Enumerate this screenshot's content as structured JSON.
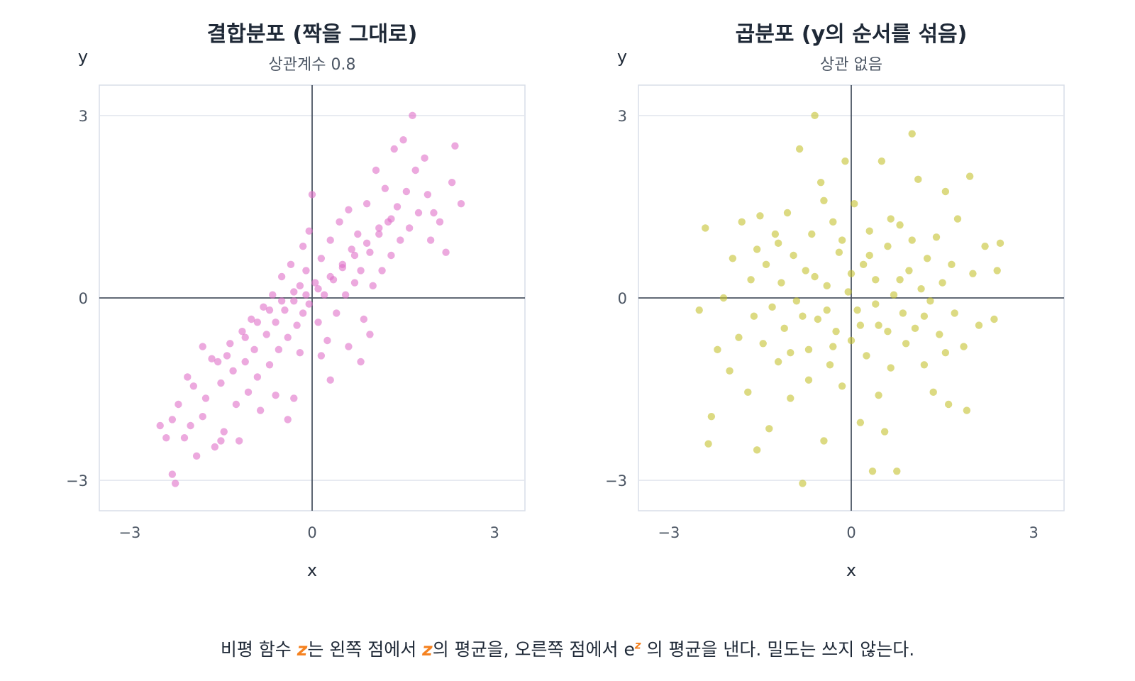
{
  "colors": {
    "left_points": "#e06fc8",
    "right_points": "#c4c22e",
    "axis_line": "#4b5563",
    "grid": "#e2e6ee",
    "frame": "#d9dee8",
    "accent": "#f58220"
  },
  "chart_data": [
    {
      "type": "scatter",
      "title": "결합분포 (짝을 그대로)",
      "subtitle": "상관계수 0.8",
      "xlabel": "x",
      "ylabel": "y",
      "xlim": [
        -3.5,
        3.5
      ],
      "ylim": [
        -3.5,
        3.5
      ],
      "xticks": [
        -3,
        0,
        3
      ],
      "yticks": [
        -3,
        0,
        3
      ],
      "xtick_labels": [
        "−3",
        "0",
        "3"
      ],
      "ytick_labels": [
        "−3",
        "0",
        "3"
      ],
      "grid": true,
      "reference_lines": {
        "x": 0,
        "y": 0
      },
      "points": [
        [
          -2.5,
          -2.1
        ],
        [
          -2.4,
          -2.3
        ],
        [
          -2.3,
          -2.9
        ],
        [
          -2.25,
          -3.05
        ],
        [
          -2.3,
          -2.0
        ],
        [
          -2.1,
          -2.3
        ],
        [
          -2.2,
          -1.75
        ],
        [
          -2.0,
          -2.1
        ],
        [
          -1.95,
          -1.45
        ],
        [
          -1.9,
          -2.6
        ],
        [
          -1.8,
          -1.95
        ],
        [
          -1.75,
          -1.65
        ],
        [
          -1.6,
          -2.45
        ],
        [
          -1.55,
          -1.05
        ],
        [
          -1.5,
          -1.4
        ],
        [
          -1.45,
          -2.2
        ],
        [
          -1.35,
          -0.75
        ],
        [
          -1.3,
          -1.2
        ],
        [
          -1.25,
          -1.75
        ],
        [
          -1.2,
          -2.35
        ],
        [
          -1.15,
          -0.55
        ],
        [
          -1.1,
          -1.05
        ],
        [
          -1.05,
          -1.55
        ],
        [
          -1.0,
          -0.35
        ],
        [
          -0.95,
          -0.85
        ],
        [
          -0.9,
          -1.3
        ],
        [
          -0.85,
          -1.85
        ],
        [
          -0.8,
          -0.15
        ],
        [
          -0.75,
          -0.6
        ],
        [
          -0.7,
          -1.1
        ],
        [
          -0.65,
          0.05
        ],
        [
          -0.6,
          -0.4
        ],
        [
          -0.55,
          -0.85
        ],
        [
          -0.5,
          0.35
        ],
        [
          -0.45,
          -0.2
        ],
        [
          -0.4,
          -0.65
        ],
        [
          -0.35,
          0.55
        ],
        [
          -0.3,
          -0.05
        ],
        [
          -0.25,
          -0.45
        ],
        [
          -0.2,
          0.2
        ],
        [
          -0.15,
          -0.25
        ],
        [
          -0.1,
          0.45
        ],
        [
          -0.05,
          -0.1
        ],
        [
          0.0,
          1.7
        ],
        [
          0.05,
          0.25
        ],
        [
          0.1,
          -0.4
        ],
        [
          0.15,
          0.65
        ],
        [
          0.2,
          0.05
        ],
        [
          0.25,
          -0.7
        ],
        [
          0.3,
          0.95
        ],
        [
          0.35,
          0.3
        ],
        [
          0.4,
          -0.25
        ],
        [
          0.45,
          1.25
        ],
        [
          0.5,
          0.5
        ],
        [
          0.55,
          0.05
        ],
        [
          0.6,
          1.45
        ],
        [
          0.65,
          0.8
        ],
        [
          0.7,
          0.25
        ],
        [
          0.75,
          1.05
        ],
        [
          0.8,
          0.45
        ],
        [
          0.85,
          -0.35
        ],
        [
          0.9,
          1.55
        ],
        [
          0.95,
          0.75
        ],
        [
          1.0,
          0.2
        ],
        [
          1.05,
          2.1
        ],
        [
          1.1,
          1.05
        ],
        [
          1.15,
          0.45
        ],
        [
          1.2,
          1.8
        ],
        [
          1.25,
          1.25
        ],
        [
          1.3,
          0.7
        ],
        [
          1.35,
          2.45
        ],
        [
          1.4,
          1.5
        ],
        [
          1.45,
          0.95
        ],
        [
          1.5,
          2.6
        ],
        [
          1.55,
          1.75
        ],
        [
          1.6,
          1.15
        ],
        [
          1.65,
          3.0
        ],
        [
          1.7,
          2.1
        ],
        [
          1.75,
          1.4
        ],
        [
          1.85,
          2.3
        ],
        [
          1.9,
          1.7
        ],
        [
          1.95,
          0.95
        ],
        [
          2.0,
          1.4
        ],
        [
          2.1,
          1.25
        ],
        [
          2.2,
          0.75
        ],
        [
          2.3,
          1.9
        ],
        [
          2.35,
          2.5
        ],
        [
          2.45,
          1.55
        ],
        [
          -1.65,
          -1.0
        ],
        [
          -1.4,
          -0.95
        ],
        [
          -1.1,
          -0.65
        ],
        [
          -0.9,
          -0.4
        ],
        [
          -0.7,
          -0.2
        ],
        [
          -0.5,
          -0.05
        ],
        [
          -0.3,
          0.1
        ],
        [
          -0.1,
          0.05
        ],
        [
          0.1,
          0.15
        ],
        [
          0.3,
          0.35
        ],
        [
          0.5,
          0.55
        ],
        [
          0.7,
          0.7
        ],
        [
          0.9,
          0.9
        ],
        [
          1.1,
          1.15
        ],
        [
          1.3,
          1.3
        ],
        [
          -0.6,
          -1.6
        ],
        [
          -0.3,
          -1.65
        ],
        [
          0.3,
          -1.35
        ],
        [
          0.8,
          -1.05
        ],
        [
          -1.5,
          -2.35
        ],
        [
          -2.05,
          -1.3
        ],
        [
          -0.4,
          -2.0
        ],
        [
          0.95,
          -0.6
        ],
        [
          0.6,
          -0.8
        ],
        [
          -1.8,
          -0.8
        ],
        [
          -0.2,
          -0.9
        ],
        [
          0.15,
          -0.95
        ],
        [
          -0.05,
          1.1
        ],
        [
          -0.15,
          0.85
        ]
      ]
    },
    {
      "type": "scatter",
      "title": "곱분포 (y의 순서를 섞음)",
      "subtitle": "상관 없음",
      "xlabel": "x",
      "ylabel": "y",
      "xlim": [
        -3.5,
        3.5
      ],
      "ylim": [
        -3.5,
        3.5
      ],
      "xticks": [
        -3,
        0,
        3
      ],
      "yticks": [
        -3,
        0,
        3
      ],
      "xtick_labels": [
        "−3",
        "0",
        "3"
      ],
      "ytick_labels": [
        "−3",
        "0",
        "3"
      ],
      "grid": true,
      "reference_lines": {
        "x": 0,
        "y": 0
      },
      "points": [
        [
          -2.5,
          -0.2
        ],
        [
          -2.4,
          1.15
        ],
        [
          -2.35,
          -2.4
        ],
        [
          -2.3,
          -1.95
        ],
        [
          -2.2,
          -0.85
        ],
        [
          -2.1,
          0.0
        ],
        [
          -2.0,
          -1.2
        ],
        [
          -1.95,
          0.65
        ],
        [
          -1.85,
          -0.65
        ],
        [
          -1.8,
          1.25
        ],
        [
          -1.7,
          -1.55
        ],
        [
          -1.65,
          0.3
        ],
        [
          -1.6,
          -0.3
        ],
        [
          -1.55,
          -2.5
        ],
        [
          -1.5,
          1.35
        ],
        [
          -1.45,
          -0.75
        ],
        [
          -1.4,
          0.55
        ],
        [
          -1.35,
          -2.15
        ],
        [
          -1.3,
          -0.15
        ],
        [
          -1.25,
          1.05
        ],
        [
          -1.2,
          -1.05
        ],
        [
          -1.15,
          0.25
        ],
        [
          -1.1,
          -0.5
        ],
        [
          -1.05,
          1.4
        ],
        [
          -1.0,
          -1.65
        ],
        [
          -0.95,
          0.7
        ],
        [
          -0.9,
          -0.05
        ],
        [
          -0.85,
          2.45
        ],
        [
          -0.8,
          -3.05
        ],
        [
          -0.75,
          0.45
        ],
        [
          -0.7,
          -0.85
        ],
        [
          -0.65,
          1.05
        ],
        [
          -0.6,
          3.0
        ],
        [
          -0.55,
          -0.35
        ],
        [
          -0.5,
          1.9
        ],
        [
          -0.45,
          -2.35
        ],
        [
          -0.4,
          0.2
        ],
        [
          -0.35,
          -1.1
        ],
        [
          -0.3,
          1.25
        ],
        [
          -0.25,
          -0.55
        ],
        [
          -0.2,
          0.75
        ],
        [
          -0.15,
          -1.45
        ],
        [
          -0.1,
          2.25
        ],
        [
          -0.05,
          0.1
        ],
        [
          0.0,
          -0.7
        ],
        [
          0.05,
          1.55
        ],
        [
          0.1,
          -0.2
        ],
        [
          0.15,
          -2.05
        ],
        [
          0.2,
          0.55
        ],
        [
          0.25,
          -0.95
        ],
        [
          0.3,
          1.1
        ],
        [
          0.35,
          -2.85
        ],
        [
          0.4,
          0.3
        ],
        [
          0.45,
          -0.45
        ],
        [
          0.5,
          2.25
        ],
        [
          0.55,
          -2.2
        ],
        [
          0.6,
          0.85
        ],
        [
          0.65,
          -1.15
        ],
        [
          0.7,
          0.05
        ],
        [
          0.75,
          -2.85
        ],
        [
          0.8,
          1.2
        ],
        [
          0.85,
          -0.25
        ],
        [
          0.9,
          -0.75
        ],
        [
          0.95,
          0.45
        ],
        [
          1.0,
          2.7
        ],
        [
          1.05,
          -0.5
        ],
        [
          1.1,
          1.95
        ],
        [
          1.15,
          0.15
        ],
        [
          1.2,
          -1.1
        ],
        [
          1.25,
          0.65
        ],
        [
          1.3,
          -0.05
        ],
        [
          1.35,
          -1.55
        ],
        [
          1.4,
          1.0
        ],
        [
          1.45,
          -0.6
        ],
        [
          1.5,
          0.25
        ],
        [
          1.55,
          1.75
        ],
        [
          1.6,
          -1.75
        ],
        [
          1.65,
          0.55
        ],
        [
          1.7,
          -0.25
        ],
        [
          1.75,
          1.3
        ],
        [
          1.85,
          -0.8
        ],
        [
          1.9,
          -1.85
        ],
        [
          1.95,
          2.0
        ],
        [
          2.0,
          0.4
        ],
        [
          2.1,
          -0.45
        ],
        [
          2.2,
          0.85
        ],
        [
          2.35,
          -0.35
        ],
        [
          2.4,
          0.45
        ],
        [
          2.45,
          0.9
        ],
        [
          -1.2,
          0.9
        ],
        [
          -0.8,
          -0.3
        ],
        [
          -0.4,
          -0.2
        ],
        [
          0.0,
          0.4
        ],
        [
          0.4,
          -0.1
        ],
        [
          0.8,
          0.3
        ],
        [
          1.2,
          -0.3
        ],
        [
          -0.6,
          0.35
        ],
        [
          0.6,
          -0.55
        ],
        [
          -0.3,
          -0.8
        ],
        [
          0.3,
          0.7
        ],
        [
          -0.15,
          0.95
        ],
        [
          0.15,
          -0.45
        ],
        [
          -0.7,
          -1.35
        ],
        [
          0.65,
          1.3
        ],
        [
          -1.0,
          -0.9
        ],
        [
          1.0,
          0.95
        ],
        [
          -0.45,
          1.6
        ],
        [
          0.45,
          -1.6
        ],
        [
          -1.55,
          0.8
        ],
        [
          1.55,
          -0.9
        ]
      ]
    }
  ],
  "caption": {
    "before": "비평 함수 ",
    "z1": "z",
    "mid1": "는 왼쪽 점에서 ",
    "z2": "z",
    "mid2": "의 평균을, 오른쪽 점에서 e",
    "sup": "z",
    "after": " 의 평균을 낸다. 밀도는 쓰지 않는다."
  }
}
